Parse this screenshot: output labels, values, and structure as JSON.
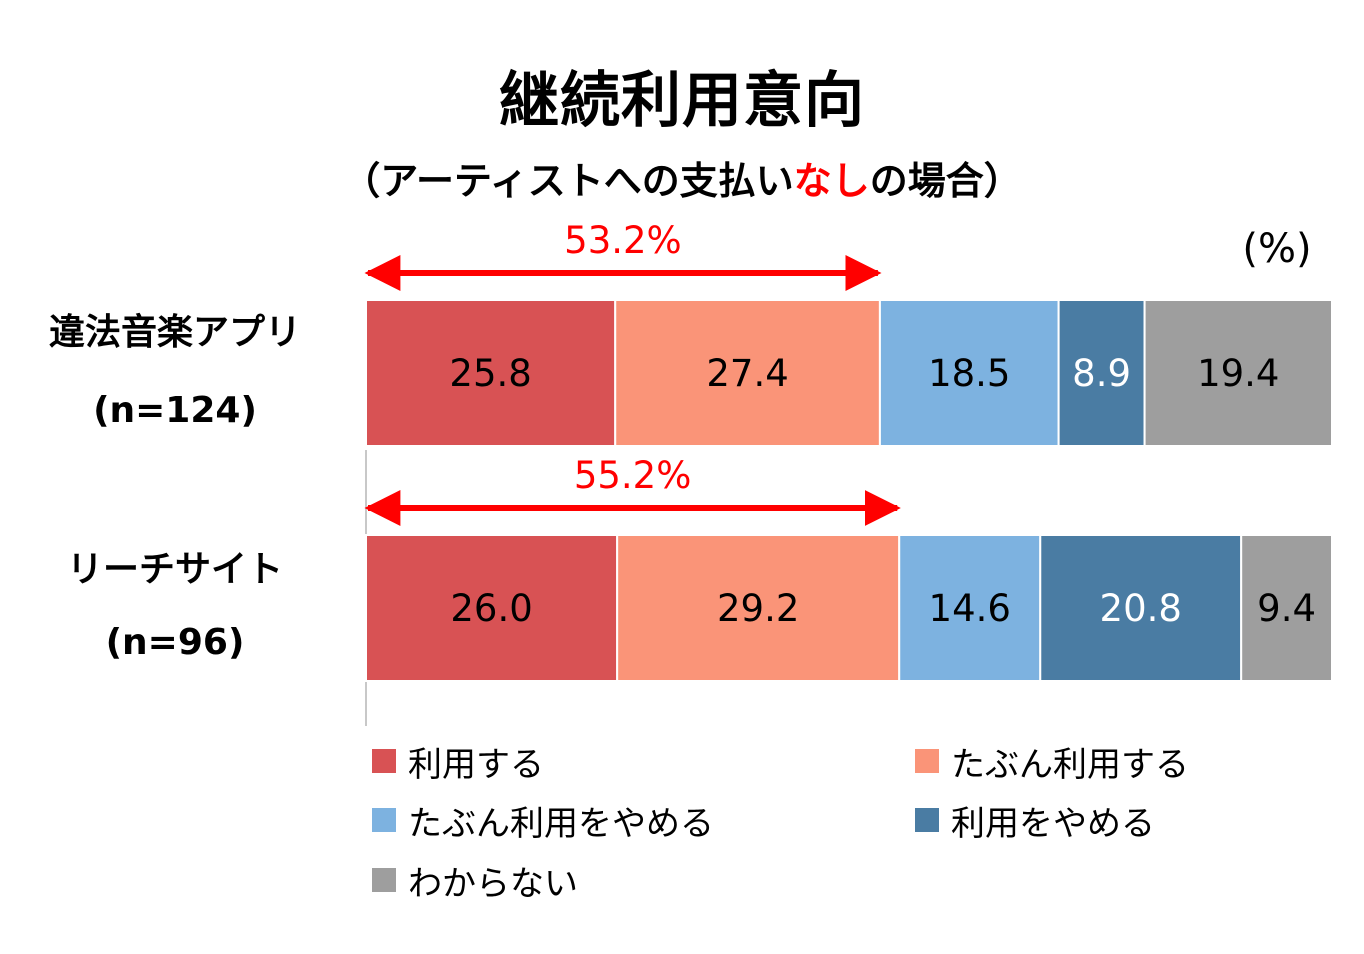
{
  "chart_data": {
    "type": "bar",
    "orientation": "horizontal",
    "stacked": true,
    "title": "継続利用意向",
    "subtitle_parts": [
      "（アーティストへの支払い",
      "なし",
      "の場合）"
    ],
    "unit": "(%)",
    "categories": [
      {
        "name": "違法音楽アプリ",
        "n": "(n=124)"
      },
      {
        "name": "リーチサイト",
        "n": "(n=96)"
      }
    ],
    "series": [
      {
        "name": "利用する",
        "color": "#d85254",
        "label_color": "#000000",
        "values": [
          25.8,
          26.0
        ],
        "labels": [
          "25.8",
          "26.0"
        ]
      },
      {
        "name": "たぶん利用する",
        "color": "#fa9478",
        "label_color": "#000000",
        "values": [
          27.4,
          29.2
        ],
        "labels": [
          "27.4",
          "29.2"
        ]
      },
      {
        "name": "たぶん利用をやめる",
        "color": "#7db2e0",
        "label_color": "#000000",
        "values": [
          18.5,
          14.6
        ],
        "labels": [
          "18.5",
          "14.6"
        ]
      },
      {
        "name": "利用をやめる",
        "color": "#4a7ca3",
        "label_color": "#ffffff",
        "values": [
          8.9,
          20.8
        ],
        "labels": [
          "8.9",
          "20.8"
        ]
      },
      {
        "name": "わからない",
        "color": "#9e9e9e",
        "label_color": "#000000",
        "values": [
          19.4,
          9.4
        ],
        "labels": [
          "19.4",
          "9.4"
        ]
      }
    ],
    "annotations": [
      {
        "text": "53.2%",
        "value": 53.2,
        "category_index": 0,
        "color": "#ff0000"
      },
      {
        "text": "55.2%",
        "value": 55.2,
        "category_index": 1,
        "color": "#ff0000"
      }
    ],
    "xlim": [
      0,
      100
    ],
    "grid": false,
    "legend_position": "bottom"
  }
}
